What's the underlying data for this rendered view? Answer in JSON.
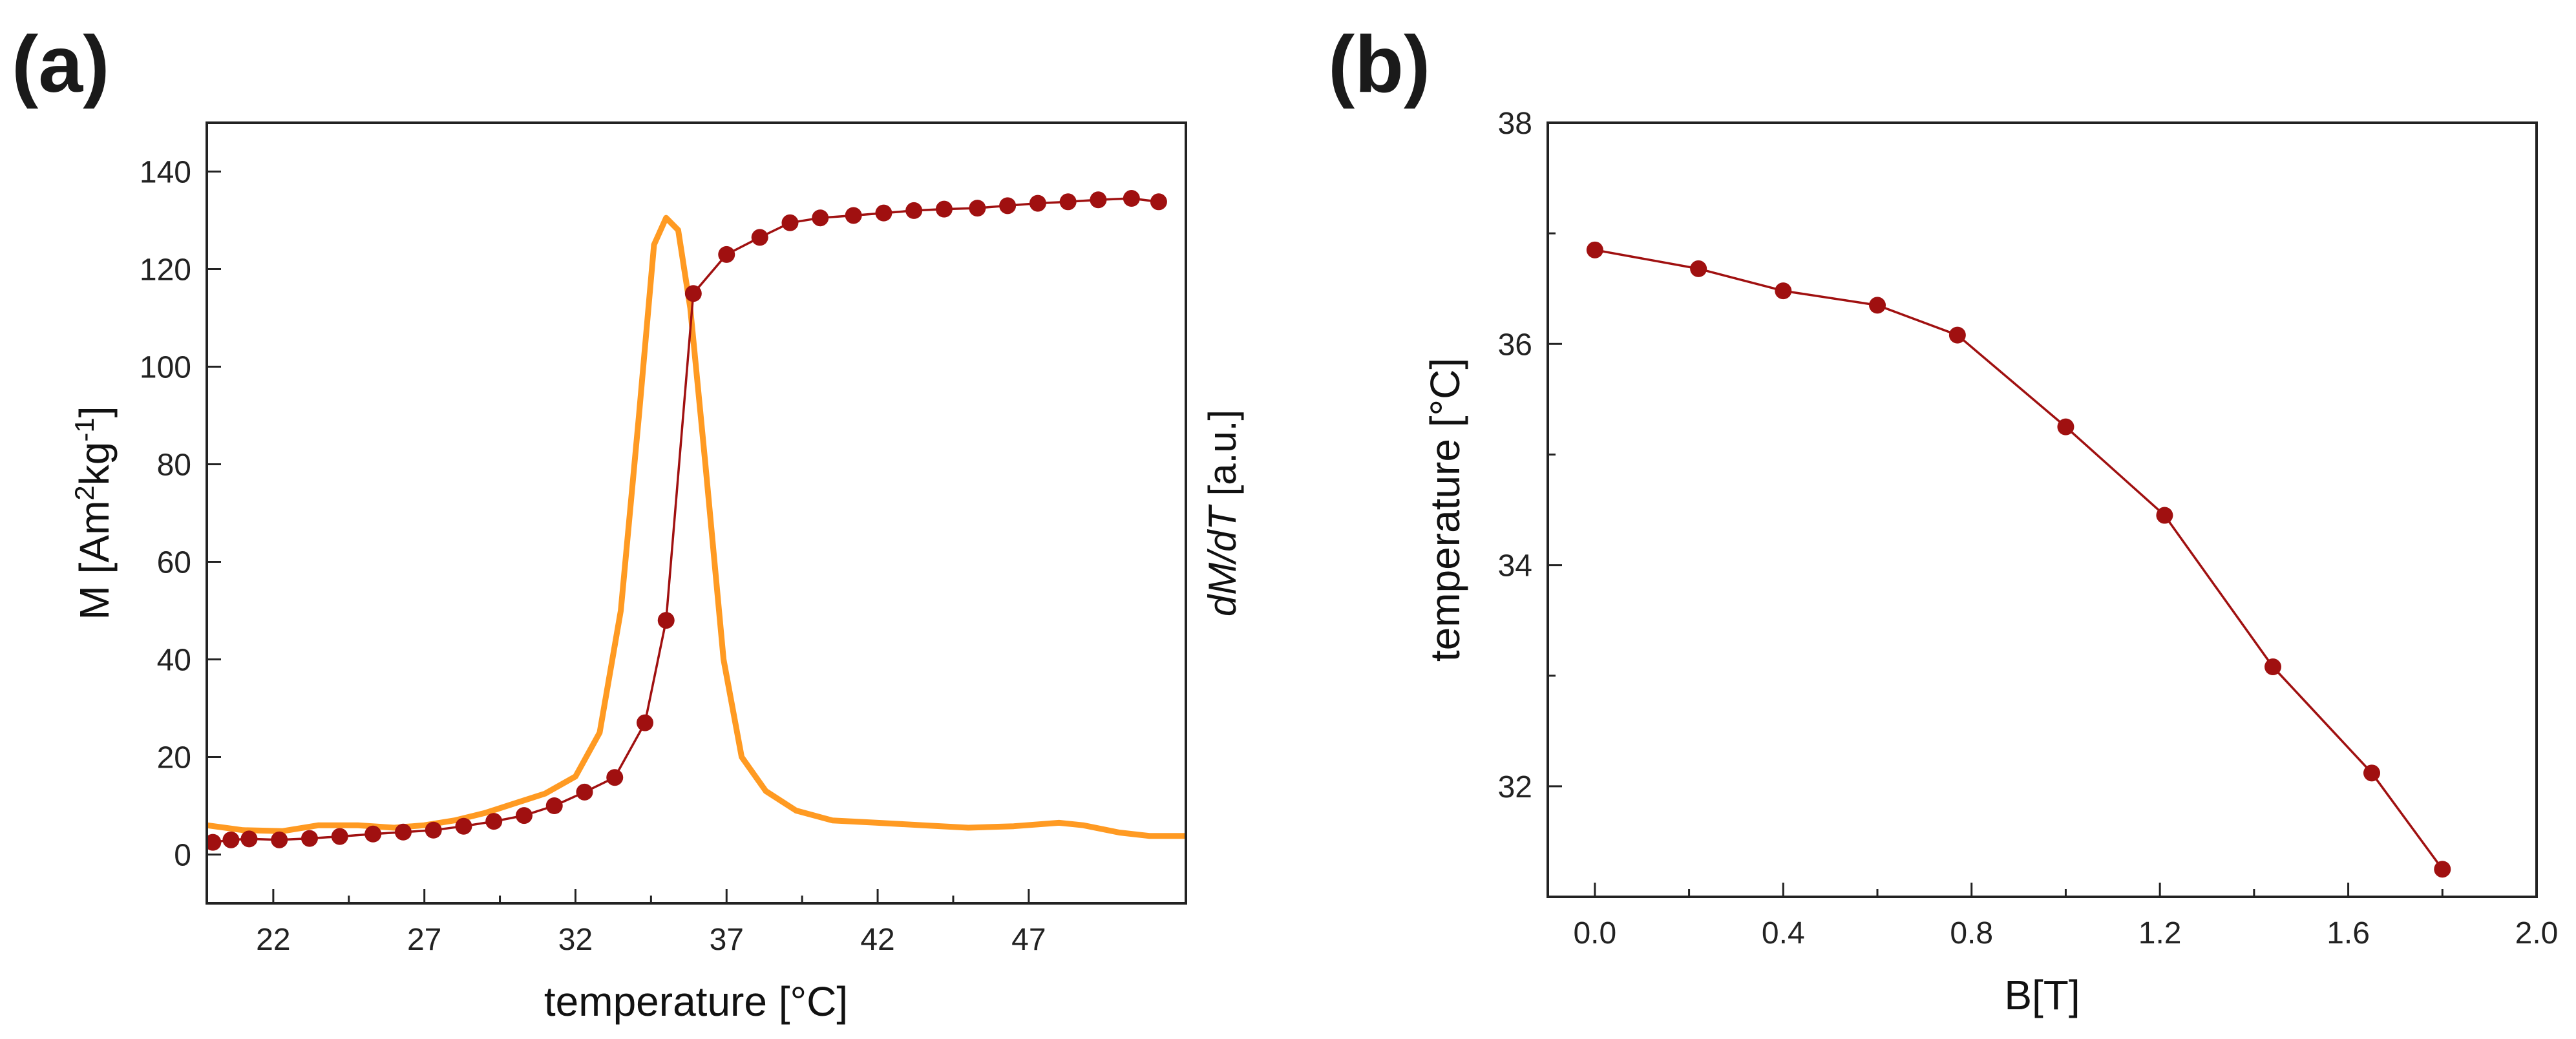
{
  "chart_data": [
    {
      "panel": "(a)",
      "type": "line",
      "xlabel": "temperature [°C]",
      "ylabel": "M [Am²kg⁻¹]",
      "ylabel_parts": {
        "pre": "M [Am",
        "sup1": "2",
        "mid": "kg",
        "sup2": "-1",
        "post": "]"
      },
      "ylabel_right": "dM/dT [a.u.]",
      "ylabel_right_parts": {
        "italic": "dM/dT",
        "rest": " [a.u.]"
      },
      "xlim": [
        19.8,
        52.2
      ],
      "ylim": [
        -10,
        150
      ],
      "xticks": [
        22,
        27,
        32,
        37,
        42,
        47
      ],
      "yticks": [
        0,
        20,
        40,
        60,
        80,
        100,
        120,
        140
      ],
      "series": [
        {
          "name": "M",
          "color": "#a01010",
          "marker": "circle",
          "x": [
            20.0,
            20.6,
            21.2,
            22.2,
            23.2,
            24.2,
            25.3,
            26.3,
            27.3,
            28.3,
            29.3,
            30.3,
            31.3,
            32.3,
            33.3,
            34.3,
            35.0,
            35.9,
            37.0,
            38.1,
            39.1,
            40.1,
            41.2,
            42.2,
            43.2,
            44.2,
            45.3,
            46.3,
            47.3,
            48.3,
            49.3,
            50.4,
            51.3
          ],
          "y": [
            2.5,
            3.0,
            3.2,
            3.0,
            3.3,
            3.7,
            4.2,
            4.6,
            5.0,
            5.8,
            6.8,
            8.0,
            10.0,
            12.8,
            15.8,
            27.0,
            48.0,
            115.0,
            123.0,
            126.5,
            129.5,
            130.5,
            131.0,
            131.5,
            132.0,
            132.3,
            132.5,
            133.0,
            133.5,
            133.8,
            134.2,
            134.5,
            133.8
          ]
        },
        {
          "name": "dM/dT",
          "color": "#ff9a22",
          "marker": "none",
          "x": [
            19.8,
            21.0,
            22.3,
            23.5,
            24.8,
            26.0,
            27.0,
            28.0,
            29.0,
            30.0,
            31.0,
            32.0,
            32.8,
            33.5,
            34.1,
            34.6,
            35.0,
            35.4,
            35.8,
            36.3,
            36.9,
            37.5,
            38.3,
            39.3,
            40.5,
            42.0,
            43.5,
            45.0,
            46.5,
            48.0,
            48.8,
            50.0,
            51.0,
            52.2
          ],
          "y": [
            6.0,
            5.0,
            4.8,
            6.0,
            6.0,
            5.5,
            6.0,
            7.0,
            8.5,
            10.5,
            12.5,
            16.0,
            25.0,
            50.0,
            90.0,
            125.0,
            130.5,
            128.0,
            112.0,
            80.0,
            40.0,
            20.0,
            13.0,
            9.0,
            7.0,
            6.5,
            6.0,
            5.5,
            5.8,
            6.5,
            6.0,
            4.5,
            3.8,
            3.8
          ]
        }
      ]
    },
    {
      "panel": "(b)",
      "type": "line",
      "xlabel": "B[T]",
      "ylabel": "temperature [°C]",
      "xlim": [
        -0.1,
        2.0
      ],
      "ylim": [
        31.0,
        38.0
      ],
      "xticks": [
        0.0,
        0.4,
        0.8,
        1.2,
        1.6,
        2.0
      ],
      "xtick_labels": [
        "0.0",
        "0.4",
        "0.8",
        "1.2",
        "1.6",
        "2.0"
      ],
      "yticks": [
        32,
        34,
        36,
        38
      ],
      "series": [
        {
          "name": "temperature",
          "color": "#a01010",
          "marker": "circle",
          "x": [
            0.0,
            0.22,
            0.4,
            0.6,
            0.77,
            1.0,
            1.21,
            1.44,
            1.65,
            1.8
          ],
          "y": [
            36.85,
            36.68,
            36.48,
            36.35,
            36.08,
            35.25,
            34.45,
            33.08,
            32.12,
            31.25
          ]
        }
      ]
    }
  ]
}
